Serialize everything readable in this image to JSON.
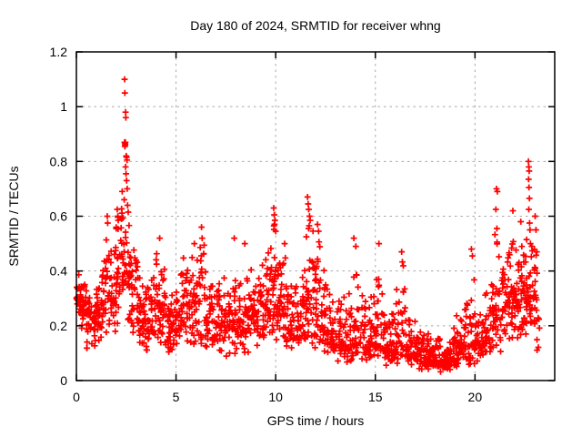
{
  "page": {
    "background": "#ffffff"
  },
  "chart_data": {
    "type": "scatter",
    "title": "Day 180 of 2024, SRMTID for receiver whng",
    "xlabel": "GPS time / hours",
    "ylabel": "SRMTID / TECUs",
    "xlim": [
      0,
      24
    ],
    "ylim": [
      0,
      1.2
    ],
    "xticks": [
      0,
      5,
      10,
      15,
      20
    ],
    "yticks": [
      0,
      0.2,
      0.4,
      0.6,
      0.8,
      1,
      1.2
    ],
    "ytick_labels": [
      "0",
      "0.2",
      "0.4",
      "0.6",
      "0.8",
      "1",
      "1.2"
    ],
    "grid": true,
    "grid_color": "#a8a8a8",
    "border_color": "#000000",
    "legend": "none",
    "marker": {
      "shape": "plus",
      "color": "#ff0000",
      "size": 6.8,
      "stroke_width": 1.7
    },
    "seed": 42,
    "summary": "Dense scatter of SRMTID values vs GPS time; band mostly 0.1-0.45 TECUs, large spike to 1.1 near hour 2.5, local peaks near hours 10, 11.7, quiet minimum 0.05-0.2 between hours 17-19, rise to 0.8 near hour 22.7; data ends near hour 23.2",
    "envelope_bins_format": [
      "t_start_hours",
      "t_end_hours",
      "n_points",
      "y_min",
      "y_max",
      "y_mode"
    ],
    "envelope_bins": [
      [
        0.0,
        0.25,
        26,
        0.2,
        0.42,
        0.3
      ],
      [
        0.25,
        0.5,
        24,
        0.17,
        0.38,
        0.26
      ],
      [
        0.5,
        0.75,
        24,
        0.1,
        0.34,
        0.22
      ],
      [
        0.75,
        1.0,
        22,
        0.07,
        0.3,
        0.2
      ],
      [
        1.0,
        1.25,
        22,
        0.12,
        0.38,
        0.24
      ],
      [
        1.25,
        1.5,
        22,
        0.14,
        0.48,
        0.28
      ],
      [
        1.5,
        1.75,
        20,
        0.15,
        0.58,
        0.32
      ],
      [
        1.75,
        2.0,
        20,
        0.14,
        0.52,
        0.28
      ],
      [
        2.0,
        2.25,
        22,
        0.18,
        0.62,
        0.38
      ],
      [
        2.25,
        2.5,
        24,
        0.18,
        0.72,
        0.42
      ],
      [
        2.5,
        2.75,
        22,
        0.16,
        0.6,
        0.36
      ],
      [
        2.75,
        3.0,
        20,
        0.14,
        0.52,
        0.28
      ],
      [
        3.0,
        3.25,
        22,
        0.12,
        0.45,
        0.24
      ],
      [
        3.25,
        3.5,
        22,
        0.1,
        0.4,
        0.22
      ],
      [
        3.5,
        3.75,
        20,
        0.1,
        0.38,
        0.2
      ],
      [
        3.75,
        4.0,
        20,
        0.1,
        0.42,
        0.24
      ],
      [
        4.0,
        4.25,
        22,
        0.11,
        0.5,
        0.26
      ],
      [
        4.25,
        4.5,
        20,
        0.1,
        0.44,
        0.24
      ],
      [
        4.5,
        4.75,
        20,
        0.08,
        0.34,
        0.19
      ],
      [
        4.75,
        5.0,
        20,
        0.08,
        0.34,
        0.18
      ],
      [
        5.0,
        5.25,
        20,
        0.1,
        0.42,
        0.24
      ],
      [
        5.25,
        5.5,
        20,
        0.1,
        0.46,
        0.26
      ],
      [
        5.5,
        5.75,
        20,
        0.11,
        0.44,
        0.24
      ],
      [
        5.75,
        6.0,
        20,
        0.1,
        0.48,
        0.26
      ],
      [
        6.0,
        6.25,
        20,
        0.1,
        0.52,
        0.26
      ],
      [
        6.25,
        6.5,
        18,
        0.09,
        0.5,
        0.23
      ],
      [
        6.5,
        6.75,
        18,
        0.08,
        0.38,
        0.2
      ],
      [
        6.75,
        7.0,
        18,
        0.08,
        0.36,
        0.19
      ],
      [
        7.0,
        7.25,
        20,
        0.09,
        0.4,
        0.22
      ],
      [
        7.25,
        7.5,
        18,
        0.09,
        0.42,
        0.22
      ],
      [
        7.5,
        7.75,
        18,
        0.08,
        0.38,
        0.2
      ],
      [
        7.75,
        8.0,
        20,
        0.09,
        0.48,
        0.23
      ],
      [
        8.0,
        8.25,
        20,
        0.09,
        0.44,
        0.22
      ],
      [
        8.25,
        8.5,
        18,
        0.08,
        0.36,
        0.19
      ],
      [
        8.5,
        8.75,
        20,
        0.09,
        0.38,
        0.22
      ],
      [
        8.75,
        9.0,
        20,
        0.11,
        0.42,
        0.25
      ],
      [
        9.0,
        9.25,
        18,
        0.1,
        0.4,
        0.22
      ],
      [
        9.25,
        9.5,
        20,
        0.11,
        0.44,
        0.25
      ],
      [
        9.5,
        9.75,
        22,
        0.13,
        0.52,
        0.29
      ],
      [
        9.75,
        10.0,
        24,
        0.14,
        0.6,
        0.33
      ],
      [
        10.0,
        10.25,
        22,
        0.11,
        0.52,
        0.27
      ],
      [
        10.25,
        10.5,
        20,
        0.1,
        0.48,
        0.25
      ],
      [
        10.5,
        10.75,
        18,
        0.08,
        0.4,
        0.2
      ],
      [
        10.75,
        11.0,
        18,
        0.08,
        0.36,
        0.18
      ],
      [
        11.0,
        11.25,
        20,
        0.09,
        0.38,
        0.2
      ],
      [
        11.25,
        11.5,
        20,
        0.11,
        0.46,
        0.25
      ],
      [
        11.5,
        11.75,
        22,
        0.13,
        0.6,
        0.3
      ],
      [
        11.75,
        12.0,
        22,
        0.11,
        0.55,
        0.27
      ],
      [
        12.0,
        12.25,
        22,
        0.1,
        0.52,
        0.25
      ],
      [
        12.25,
        12.5,
        20,
        0.09,
        0.44,
        0.22
      ],
      [
        12.5,
        12.75,
        18,
        0.08,
        0.36,
        0.18
      ],
      [
        12.75,
        13.0,
        18,
        0.07,
        0.32,
        0.16
      ],
      [
        13.0,
        13.25,
        18,
        0.06,
        0.3,
        0.14
      ],
      [
        13.25,
        13.5,
        18,
        0.06,
        0.32,
        0.14
      ],
      [
        13.5,
        13.75,
        20,
        0.05,
        0.34,
        0.14
      ],
      [
        13.75,
        14.0,
        20,
        0.05,
        0.46,
        0.16
      ],
      [
        14.0,
        14.25,
        18,
        0.05,
        0.4,
        0.14
      ],
      [
        14.25,
        14.5,
        18,
        0.05,
        0.32,
        0.13
      ],
      [
        14.5,
        14.75,
        18,
        0.05,
        0.3,
        0.13
      ],
      [
        14.75,
        15.0,
        18,
        0.05,
        0.36,
        0.14
      ],
      [
        15.0,
        15.25,
        20,
        0.06,
        0.46,
        0.16
      ],
      [
        15.25,
        15.5,
        18,
        0.05,
        0.32,
        0.14
      ],
      [
        15.5,
        15.75,
        18,
        0.05,
        0.28,
        0.12
      ],
      [
        15.75,
        16.0,
        20,
        0.04,
        0.3,
        0.11
      ],
      [
        16.0,
        16.25,
        20,
        0.05,
        0.42,
        0.14
      ],
      [
        16.25,
        16.5,
        18,
        0.05,
        0.44,
        0.14
      ],
      [
        16.5,
        16.75,
        20,
        0.04,
        0.28,
        0.11
      ],
      [
        16.75,
        17.0,
        20,
        0.04,
        0.24,
        0.1
      ],
      [
        17.0,
        17.25,
        22,
        0.04,
        0.2,
        0.09
      ],
      [
        17.25,
        17.5,
        22,
        0.03,
        0.19,
        0.08
      ],
      [
        17.5,
        17.75,
        24,
        0.03,
        0.2,
        0.08
      ],
      [
        17.75,
        18.0,
        24,
        0.03,
        0.18,
        0.08
      ],
      [
        18.0,
        18.25,
        24,
        0.03,
        0.17,
        0.07
      ],
      [
        18.25,
        18.5,
        24,
        0.03,
        0.17,
        0.07
      ],
      [
        18.5,
        18.75,
        24,
        0.03,
        0.19,
        0.08
      ],
      [
        18.75,
        19.0,
        22,
        0.04,
        0.21,
        0.09
      ],
      [
        19.0,
        19.25,
        22,
        0.04,
        0.24,
        0.1
      ],
      [
        19.25,
        19.5,
        20,
        0.05,
        0.28,
        0.11
      ],
      [
        19.5,
        19.75,
        20,
        0.05,
        0.38,
        0.13
      ],
      [
        19.75,
        20.0,
        20,
        0.05,
        0.44,
        0.14
      ],
      [
        20.0,
        20.25,
        18,
        0.06,
        0.32,
        0.14
      ],
      [
        20.25,
        20.5,
        18,
        0.07,
        0.36,
        0.16
      ],
      [
        20.5,
        20.75,
        18,
        0.08,
        0.4,
        0.18
      ],
      [
        20.75,
        21.0,
        20,
        0.09,
        0.42,
        0.2
      ],
      [
        21.0,
        21.25,
        22,
        0.1,
        0.58,
        0.26
      ],
      [
        21.25,
        21.5,
        20,
        0.1,
        0.5,
        0.25
      ],
      [
        21.5,
        21.75,
        22,
        0.11,
        0.52,
        0.27
      ],
      [
        21.75,
        22.0,
        22,
        0.12,
        0.55,
        0.29
      ],
      [
        22.0,
        22.25,
        22,
        0.14,
        0.5,
        0.28
      ],
      [
        22.25,
        22.5,
        22,
        0.14,
        0.53,
        0.3
      ],
      [
        22.5,
        22.75,
        24,
        0.16,
        0.62,
        0.32
      ],
      [
        22.75,
        23.0,
        22,
        0.12,
        0.58,
        0.28
      ],
      [
        23.0,
        23.25,
        16,
        0.1,
        0.5,
        0.24
      ]
    ],
    "outlier_points": [
      [
        2.42,
        1.1
      ],
      [
        2.43,
        1.05
      ],
      [
        2.47,
        0.98
      ],
      [
        2.48,
        0.96
      ],
      [
        2.42,
        0.87
      ],
      [
        2.44,
        0.865
      ],
      [
        2.45,
        0.86
      ],
      [
        2.46,
        0.87
      ],
      [
        2.43,
        0.855
      ],
      [
        2.5,
        0.82
      ],
      [
        2.52,
        0.815
      ],
      [
        2.54,
        0.805
      ],
      [
        2.47,
        0.78
      ],
      [
        2.49,
        0.755
      ],
      [
        2.52,
        0.73
      ],
      [
        2.55,
        0.7
      ],
      [
        2.4,
        0.66
      ],
      [
        2.57,
        0.64
      ],
      [
        2.6,
        0.615
      ],
      [
        1.55,
        0.6
      ],
      [
        1.57,
        0.575
      ],
      [
        2.05,
        0.625
      ],
      [
        2.08,
        0.6
      ],
      [
        2.1,
        0.585
      ],
      [
        4.18,
        0.52
      ],
      [
        5.92,
        0.5
      ],
      [
        6.28,
        0.56
      ],
      [
        6.31,
        0.52
      ],
      [
        7.92,
        0.52
      ],
      [
        8.45,
        0.5
      ],
      [
        9.9,
        0.63
      ],
      [
        9.93,
        0.605
      ],
      [
        9.96,
        0.585
      ],
      [
        9.91,
        0.565
      ],
      [
        10.0,
        0.545
      ],
      [
        10.45,
        0.5
      ],
      [
        11.6,
        0.67
      ],
      [
        11.63,
        0.645
      ],
      [
        11.66,
        0.625
      ],
      [
        11.7,
        0.6
      ],
      [
        11.73,
        0.585
      ],
      [
        11.68,
        0.565
      ],
      [
        12.1,
        0.57
      ],
      [
        12.15,
        0.545
      ],
      [
        13.92,
        0.52
      ],
      [
        14.02,
        0.49
      ],
      [
        15.18,
        0.5
      ],
      [
        16.32,
        0.47
      ],
      [
        19.82,
        0.48
      ],
      [
        19.87,
        0.455
      ],
      [
        21.08,
        0.7
      ],
      [
        21.12,
        0.69
      ],
      [
        21.05,
        0.625
      ],
      [
        21.1,
        0.555
      ],
      [
        21.9,
        0.62
      ],
      [
        22.3,
        0.58
      ],
      [
        22.68,
        0.8
      ],
      [
        22.7,
        0.78
      ],
      [
        22.72,
        0.765
      ],
      [
        22.69,
        0.735
      ],
      [
        22.71,
        0.705
      ],
      [
        22.73,
        0.665
      ],
      [
        22.7,
        0.625
      ],
      [
        22.74,
        0.575
      ],
      [
        22.76,
        0.55
      ],
      [
        22.78,
        0.5
      ],
      [
        23.02,
        0.6
      ],
      [
        23.06,
        0.55
      ],
      [
        23.1,
        0.47
      ]
    ]
  }
}
